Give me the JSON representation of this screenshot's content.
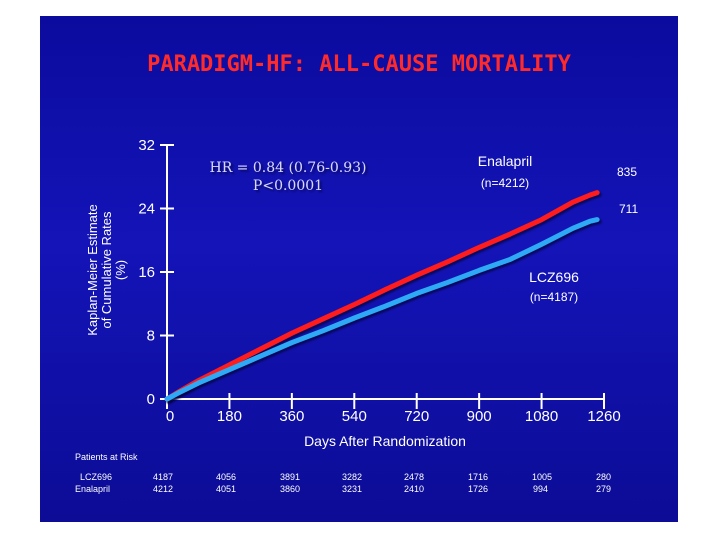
{
  "slide": {
    "title": "PARADIGM-HF: ALL-CAUSE MORTALITY"
  },
  "colors": {
    "background": "#1010b0",
    "enalapril": "#ff1a1a",
    "lcz696": "#2fa9f5",
    "text": "#ffffff",
    "title": "#ff2a2a"
  },
  "chart_data": {
    "type": "line",
    "title": "PARADIGM-HF: ALL-CAUSE MORTALITY",
    "xlabel": "Days After Randomization",
    "ylabel_lines": [
      "Kaplan-Meier Estimate",
      "of Cumulative Rates",
      "(%)"
    ],
    "xlim": [
      0,
      1260
    ],
    "ylim": [
      0,
      32
    ],
    "xticks": [
      0,
      180,
      360,
      540,
      720,
      900,
      1080,
      1260
    ],
    "xtick_labels": [
      "0",
      "180",
      "360",
      "540",
      "720",
      "900",
      "1080",
      "1260"
    ],
    "yticks": [
      0,
      8,
      16,
      24,
      32
    ],
    "ytick_labels": [
      "0",
      "8",
      "16",
      "24",
      "32"
    ],
    "hr_text": [
      "HR = 0.84 (0.76-0.93)",
      "P<0.0001"
    ],
    "series": [
      {
        "name": "Enalapril",
        "n_label": "(n=4212)",
        "events_label": "835",
        "color": "#ff1a1a",
        "x": [
          0,
          30,
          90,
          180,
          270,
          360,
          450,
          540,
          630,
          720,
          810,
          900,
          990,
          1080,
          1170,
          1220,
          1240
        ],
        "y": [
          0,
          0.8,
          2.3,
          4.3,
          6.3,
          8.3,
          10.1,
          11.9,
          13.8,
          15.6,
          17.3,
          19.1,
          20.8,
          22.6,
          24.8,
          25.7,
          26.0
        ]
      },
      {
        "name": "LCZ696",
        "n_label": "(n=4187)",
        "events_label": "711",
        "color": "#2fa9f5",
        "x": [
          0,
          30,
          90,
          180,
          270,
          360,
          450,
          540,
          630,
          720,
          810,
          900,
          990,
          1080,
          1170,
          1220,
          1240
        ],
        "y": [
          0,
          0.7,
          2.0,
          3.7,
          5.4,
          7.1,
          8.6,
          10.2,
          11.7,
          13.3,
          14.7,
          16.2,
          17.6,
          19.5,
          21.5,
          22.4,
          22.6
        ]
      }
    ]
  },
  "risk_table": {
    "header": "Patients at Risk",
    "rows": [
      {
        "label": "LCZ696",
        "values": [
          "4187",
          "4056",
          "3891",
          "3282",
          "2478",
          "1716",
          "1005",
          "280"
        ]
      },
      {
        "label": "Enalapril",
        "values": [
          "4212",
          "4051",
          "3860",
          "3231",
          "2410",
          "1726",
          "994",
          "279"
        ]
      }
    ]
  }
}
